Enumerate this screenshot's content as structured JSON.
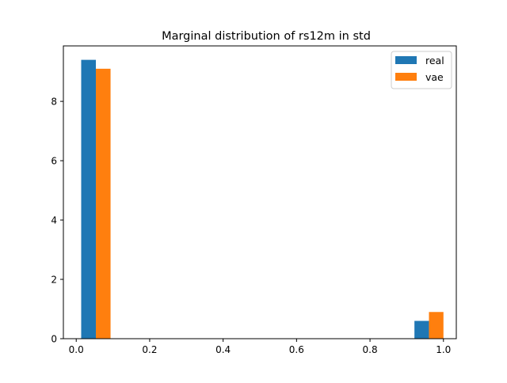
{
  "chart_data": {
    "type": "bar",
    "title": "Marginal distribution of rs12m in std",
    "xlabel": "",
    "ylabel": "",
    "xlim": [
      -0.035,
      1.035
    ],
    "ylim": [
      0,
      9.87
    ],
    "x_ticks": [
      0.0,
      0.2,
      0.4,
      0.6,
      0.8,
      1.0
    ],
    "x_tick_labels": [
      "0.0",
      "0.2",
      "0.4",
      "0.6",
      "0.8",
      "1.0"
    ],
    "y_ticks": [
      0,
      2,
      4,
      6,
      8
    ],
    "y_tick_labels": [
      "0",
      "2",
      "4",
      "6",
      "8"
    ],
    "grid": false,
    "legend": {
      "position": "top-right"
    },
    "series": [
      {
        "name": "real",
        "color": "#1f77b4",
        "bars": [
          {
            "x0": 0.0135,
            "x1": 0.0535,
            "value": 9.4
          },
          {
            "x0": 0.921,
            "x1": 0.9605,
            "value": 0.6
          }
        ]
      },
      {
        "name": "vae",
        "color": "#ff7f0e",
        "bars": [
          {
            "x0": 0.0535,
            "x1": 0.0935,
            "value": 9.1
          },
          {
            "x0": 0.9605,
            "x1": 1.0,
            "value": 0.9
          }
        ]
      }
    ]
  }
}
